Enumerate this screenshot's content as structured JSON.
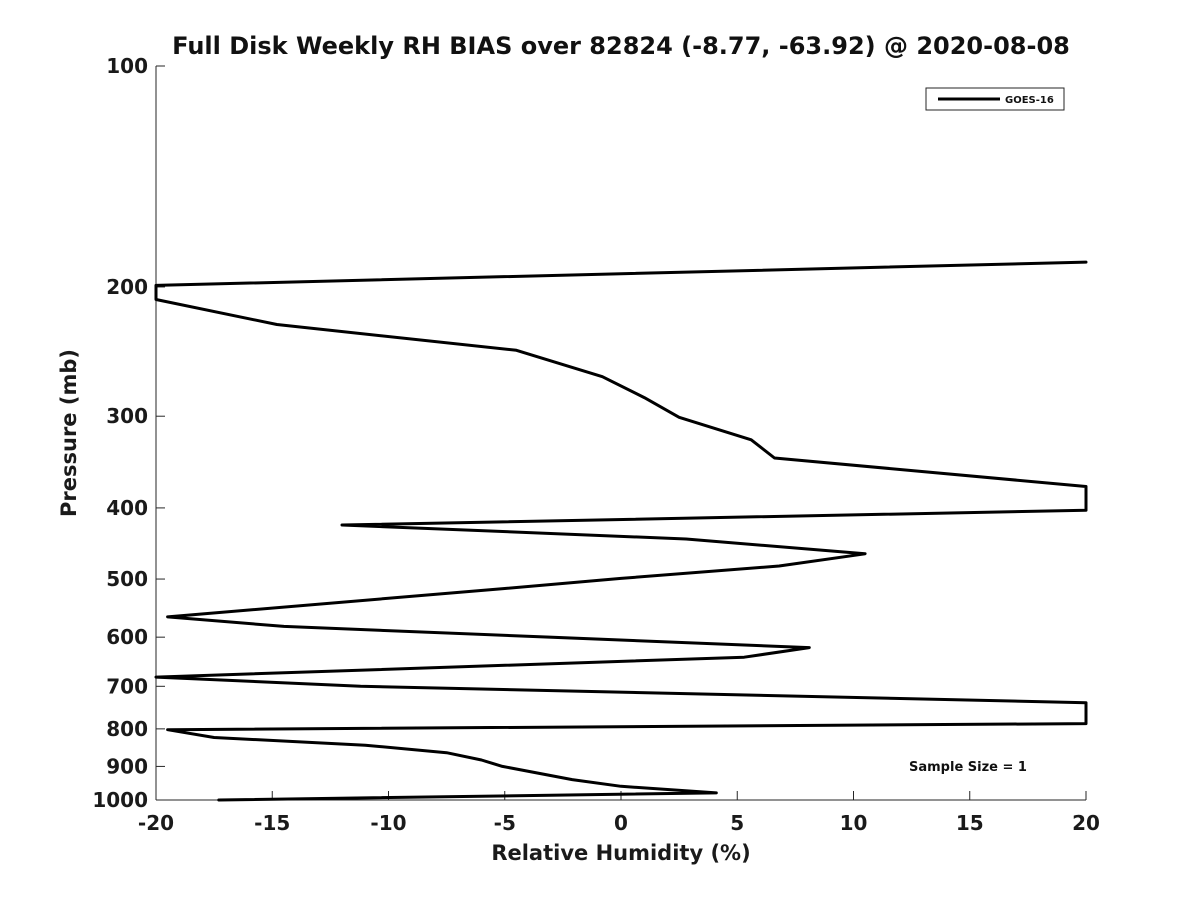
{
  "chart_data": {
    "type": "line",
    "title": "Full Disk Weekly RH BIAS over 82824 (-8.77, -63.92) @ 2020-08-08",
    "xlabel": "Relative Humidity (%)",
    "ylabel": "Pressure (mb)",
    "xlim": [
      -20,
      20
    ],
    "ylim": [
      100,
      1000
    ],
    "yscale": "log",
    "y_reversed": true,
    "grid": false,
    "legend_position": "top-right",
    "x_ticks": [
      "-20",
      "-15",
      "-10",
      "-5",
      "0",
      "5",
      "10",
      "15",
      "20"
    ],
    "y_ticks": [
      "100",
      "200",
      "300",
      "400",
      "500",
      "600",
      "700",
      "800",
      "900",
      "1000"
    ],
    "annotation": "Sample Size = 1",
    "series": [
      {
        "name": "GOES-16",
        "color": "#000000",
        "points": [
          {
            "rh": 20.0,
            "p": 185
          },
          {
            "rh": -20.0,
            "p": 199
          },
          {
            "rh": -20.0,
            "p": 208
          },
          {
            "rh": -14.8,
            "p": 225
          },
          {
            "rh": -4.5,
            "p": 244
          },
          {
            "rh": -0.8,
            "p": 265
          },
          {
            "rh": 1.0,
            "p": 283
          },
          {
            "rh": 2.5,
            "p": 301
          },
          {
            "rh": 5.6,
            "p": 323
          },
          {
            "rh": 6.6,
            "p": 342
          },
          {
            "rh": 20.0,
            "p": 374
          },
          {
            "rh": 20.0,
            "p": 403
          },
          {
            "rh": -12.0,
            "p": 422
          },
          {
            "rh": 2.8,
            "p": 441
          },
          {
            "rh": 10.5,
            "p": 462
          },
          {
            "rh": 6.8,
            "p": 480
          },
          {
            "rh": 0.0,
            "p": 499
          },
          {
            "rh": -5.0,
            "p": 515
          },
          {
            "rh": -19.5,
            "p": 563
          },
          {
            "rh": -14.5,
            "p": 580
          },
          {
            "rh": 8.1,
            "p": 620
          },
          {
            "rh": 5.3,
            "p": 639
          },
          {
            "rh": -20.0,
            "p": 680
          },
          {
            "rh": -11.2,
            "p": 700
          },
          {
            "rh": 20.0,
            "p": 737
          },
          {
            "rh": 20.0,
            "p": 787
          },
          {
            "rh": -19.5,
            "p": 802
          },
          {
            "rh": -17.5,
            "p": 822
          },
          {
            "rh": -11.0,
            "p": 842
          },
          {
            "rh": -7.5,
            "p": 862
          },
          {
            "rh": -6.0,
            "p": 882
          },
          {
            "rh": -5.1,
            "p": 900
          },
          {
            "rh": -2.1,
            "p": 938
          },
          {
            "rh": 0.0,
            "p": 958
          },
          {
            "rh": 4.1,
            "p": 978
          },
          {
            "rh": -17.3,
            "p": 1000
          }
        ]
      }
    ]
  }
}
